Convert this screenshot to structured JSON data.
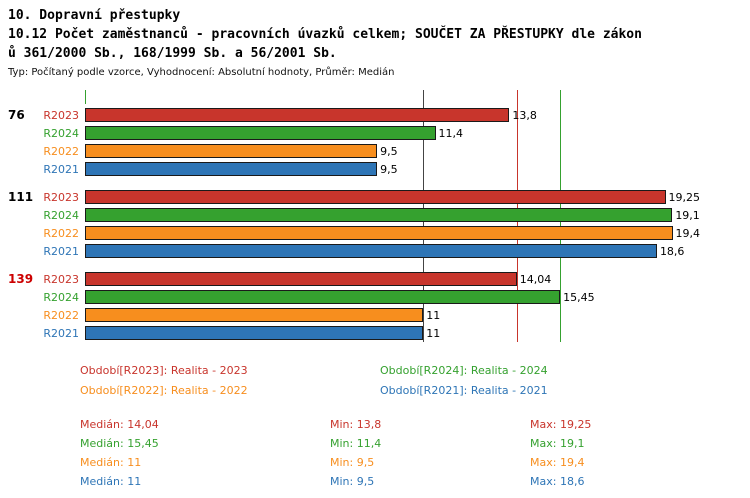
{
  "header": {
    "title_line1": "10. Dopravní přestupky",
    "title_line2": "10.12 Počet zaměstnanců - pracovních úvazků celkem; SOUČET ZA PŘESTUPKY dle zákon",
    "title_line3": "ů 361/2000 Sb., 168/1999 Sb. a 56/2001 Sb.",
    "subtitle": "Typ: Počítaný podle vzorce, Vyhodnocení: Absolutní hodnoty, Průměr: Medián"
  },
  "chart_data": {
    "type": "bar",
    "orientation": "horizontal",
    "xmax": 20,
    "grid": false,
    "groups": [
      {
        "label": "76",
        "label_color": "#000000",
        "bars": [
          {
            "series": "R2023",
            "value": 13.8,
            "value_label": "13,8",
            "color": "#C8352C"
          },
          {
            "series": "R2024",
            "value": 11.4,
            "value_label": "11,4",
            "color": "#35A12F"
          },
          {
            "series": "R2022",
            "value": 9.5,
            "value_label": "9,5",
            "color": "#F78E1E"
          },
          {
            "series": "R2021",
            "value": 9.5,
            "value_label": "9,5",
            "color": "#2E75B6"
          }
        ]
      },
      {
        "label": "111",
        "label_color": "#000000",
        "bars": [
          {
            "series": "R2023",
            "value": 19.25,
            "value_label": "19,25",
            "color": "#C8352C"
          },
          {
            "series": "R2024",
            "value": 19.1,
            "value_label": "19,1",
            "color": "#35A12F"
          },
          {
            "series": "R2022",
            "value": 19.4,
            "value_label": "19,4",
            "color": "#F78E1E"
          },
          {
            "series": "R2021",
            "value": 18.6,
            "value_label": "18,6",
            "color": "#2E75B6"
          }
        ]
      },
      {
        "label": "139",
        "label_color": "#CC0000",
        "bars": [
          {
            "series": "R2023",
            "value": 14.04,
            "value_label": "14,04",
            "color": "#C8352C"
          },
          {
            "series": "R2024",
            "value": 15.45,
            "value_label": "15,45",
            "color": "#35A12F"
          },
          {
            "series": "R2022",
            "value": 11,
            "value_label": "11",
            "color": "#F78E1E"
          },
          {
            "series": "R2021",
            "value": 11,
            "value_label": "11",
            "color": "#2E75B6"
          }
        ]
      }
    ],
    "median_lines": [
      {
        "value": 14.04,
        "color": "#C8352C"
      },
      {
        "value": 15.45,
        "color": "#35A12F"
      },
      {
        "value": 11,
        "color": "#444444"
      }
    ]
  },
  "legend": [
    {
      "label": "Období[R2023]: Realita - 2023",
      "color": "#C8352C"
    },
    {
      "label": "Období[R2024]: Realita - 2024",
      "color": "#35A12F"
    },
    {
      "label": "Období[R2022]: Realita - 2022",
      "color": "#F78E1E"
    },
    {
      "label": "Období[R2021]: Realita - 2021",
      "color": "#2E75B6"
    }
  ],
  "stats": [
    {
      "median": "Medián: 14,04",
      "min": "Min: 13,8",
      "max": "Max: 19,25",
      "color": "#C8352C"
    },
    {
      "median": "Medián: 15,45",
      "min": "Min: 11,4",
      "max": "Max: 19,1",
      "color": "#35A12F"
    },
    {
      "median": "Medián: 11",
      "min": "Min: 9,5",
      "max": "Max: 19,4",
      "color": "#F78E1E"
    },
    {
      "median": "Medián: 11",
      "min": "Min: 9,5",
      "max": "Max: 18,6",
      "color": "#2E75B6"
    }
  ]
}
